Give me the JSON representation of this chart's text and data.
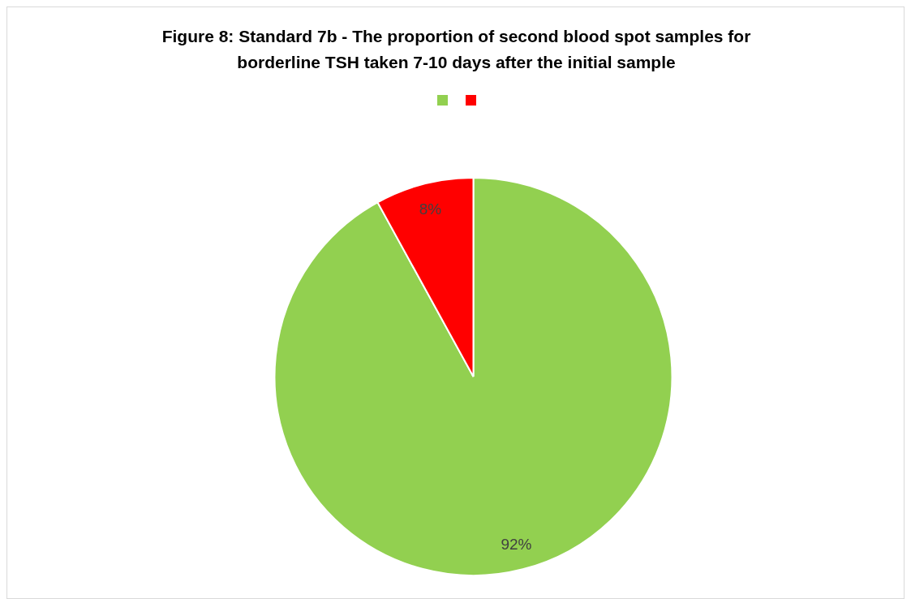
{
  "chart_data": {
    "type": "pie",
    "title": "Figure 8: Standard 7b - The proportion of second blood spot samples for borderline TSH taken 7-10 days after the initial sample",
    "categories": [
      null,
      null
    ],
    "values": [
      92,
      8
    ],
    "colors": [
      "#92d050",
      "#ff0000"
    ],
    "value_labels": [
      "92%",
      "8%"
    ]
  }
}
